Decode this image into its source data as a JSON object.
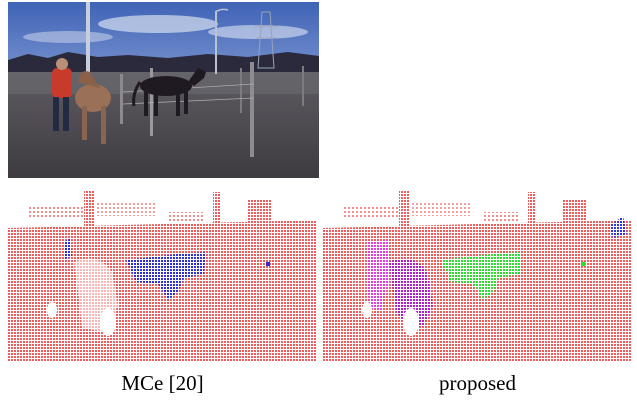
{
  "captions": {
    "left": "MCe [20]",
    "right": "proposed"
  },
  "colors": {
    "background_points": "#f26464",
    "horse_dark_mce": "#3a3ad6",
    "person_mce": "#5a5ae0",
    "horse_dark_proposed": "#33e033",
    "horse_light_proposed": "#b020d0",
    "person_proposed": "#e040e0",
    "blue_corner_proposed": "#4040e0",
    "sky_top": "#4a6fc0",
    "sky_bottom": "#b8c6e6",
    "ground": "#4c4a52"
  }
}
